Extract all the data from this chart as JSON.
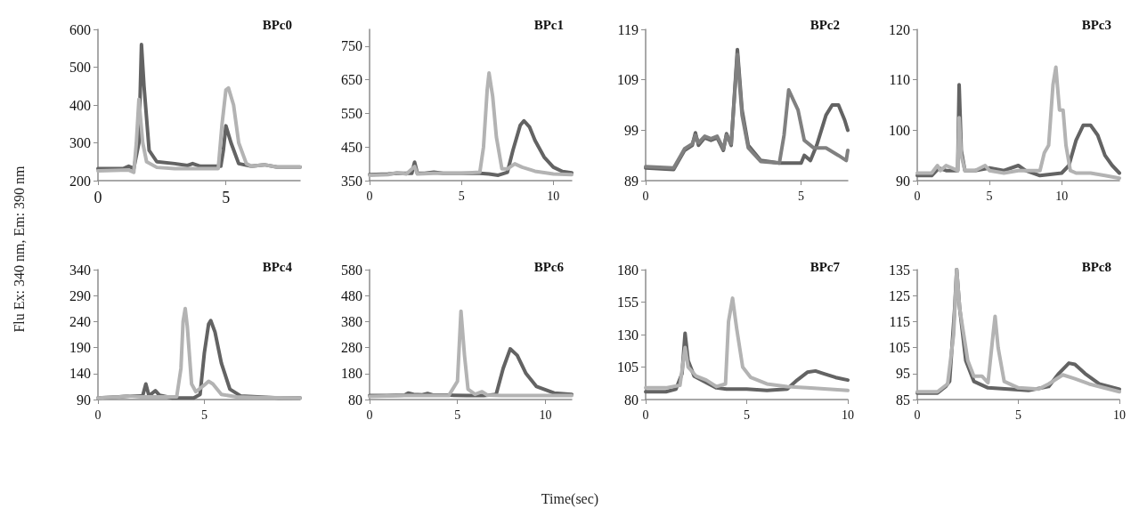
{
  "chart_data": [
    {
      "type": "line",
      "title": "BPc0",
      "ylabel": "Flu Ex: 340 nm, Em: 390 nm",
      "xlim": [
        0,
        7.9
      ],
      "xticks": [
        0,
        5
      ],
      "ylim": [
        200,
        600
      ],
      "yticks": [
        200,
        300,
        400,
        500,
        600
      ],
      "marker": "none",
      "line_style": "solid",
      "series": [
        {
          "color": "#636363",
          "x": [
            0,
            1,
            1.2,
            1.4,
            1.6,
            1.7,
            1.8,
            2.0,
            2.3,
            3,
            3.5,
            3.7,
            4,
            4.8,
            4.9,
            5.0,
            5.2,
            5.5,
            6,
            6.5,
            7,
            7.9
          ],
          "values": [
            232,
            232,
            238,
            232,
            300,
            560,
            450,
            280,
            250,
            245,
            240,
            245,
            238,
            238,
            280,
            345,
            300,
            245,
            238,
            242,
            236,
            236
          ]
        },
        {
          "color": "#b3b3b3",
          "x": [
            0,
            1.2,
            1.4,
            1.5,
            1.6,
            1.75,
            1.9,
            2.3,
            3,
            4,
            4.7,
            4.85,
            5.0,
            5.1,
            5.3,
            5.5,
            5.8,
            6,
            6.5,
            7,
            7.9
          ],
          "values": [
            226,
            228,
            222,
            300,
            415,
            300,
            250,
            235,
            232,
            232,
            232,
            350,
            440,
            445,
            400,
            300,
            245,
            238,
            242,
            236,
            236
          ]
        }
      ]
    },
    {
      "type": "line",
      "title": "BPc1",
      "xlim": [
        0,
        11
      ],
      "xticks": [
        0,
        5,
        10
      ],
      "ylim": [
        350,
        800
      ],
      "yticks": [
        350,
        450,
        550,
        650,
        750
      ],
      "marker": "none",
      "line_style": "solid",
      "series": [
        {
          "color": "#636363",
          "x": [
            0,
            1,
            1.5,
            2.0,
            2.3,
            2.45,
            2.6,
            3,
            3.5,
            4,
            5,
            6,
            6.5,
            7,
            7.5,
            7.8,
            8.2,
            8.4,
            8.7,
            9,
            9.5,
            10,
            10.5,
            11
          ],
          "values": [
            368,
            370,
            372,
            372,
            372,
            405,
            372,
            372,
            375,
            372,
            372,
            372,
            370,
            366,
            375,
            440,
            515,
            528,
            510,
            470,
            420,
            390,
            377,
            373
          ]
        },
        {
          "color": "#b3b3b3",
          "x": [
            0,
            1,
            1.5,
            2,
            2.45,
            2.6,
            3.5,
            5,
            6,
            6.2,
            6.4,
            6.5,
            6.7,
            6.9,
            7.2,
            7.5,
            7.9,
            8.3,
            9,
            10,
            11
          ],
          "values": [
            366,
            368,
            374,
            370,
            392,
            370,
            372,
            372,
            375,
            450,
            620,
            670,
            600,
            480,
            385,
            385,
            400,
            390,
            378,
            370,
            368
          ]
        }
      ]
    },
    {
      "type": "line",
      "title": "BPc2",
      "xlim": [
        0,
        6.5
      ],
      "xticks": [
        0,
        5
      ],
      "ylim": [
        89,
        119
      ],
      "yticks": [
        89,
        99,
        109,
        119
      ],
      "marker": "none",
      "line_style": "solid",
      "series": [
        {
          "color": "#636363",
          "x": [
            0,
            0.9,
            1.25,
            1.5,
            1.6,
            1.7,
            1.9,
            2.1,
            2.3,
            2.5,
            2.6,
            2.75,
            2.95,
            3.1,
            3.3,
            3.7,
            4.3,
            4.6,
            5.0,
            5.1,
            5.3,
            5.5,
            5.8,
            6.0,
            6.2,
            6.4,
            6.5
          ],
          "values": [
            91.5,
            91.2,
            95,
            96,
            98.5,
            96,
            97.5,
            97,
            97.5,
            95,
            98.3,
            96,
            115,
            103,
            96,
            93,
            92.5,
            92.5,
            92.5,
            94,
            93,
            96,
            102,
            104,
            104,
            101,
            99
          ]
        },
        {
          "color": "#808080",
          "x": [
            0,
            0.9,
            1.25,
            1.5,
            1.6,
            1.7,
            1.9,
            2.1,
            2.3,
            2.5,
            2.6,
            2.75,
            2.95,
            3.1,
            3.3,
            3.7,
            4.3,
            4.45,
            4.6,
            4.75,
            4.9,
            5.1,
            5.4,
            5.8,
            6.2,
            6.45,
            6.5
          ],
          "values": [
            91.8,
            91.5,
            95.3,
            96.3,
            98,
            96.5,
            97.8,
            97.3,
            97.8,
            95.3,
            98,
            96.3,
            114,
            102,
            95.5,
            92.8,
            92.5,
            98,
            107,
            105,
            103,
            97,
            95.5,
            95.5,
            94,
            93,
            95
          ]
        }
      ]
    },
    {
      "type": "line",
      "title": "BPc3",
      "xlim": [
        0,
        14
      ],
      "xticks": [
        0,
        5,
        10
      ],
      "ylim": [
        90,
        120
      ],
      "yticks": [
        90,
        100,
        110,
        120
      ],
      "marker": "none",
      "line_style": "solid",
      "series": [
        {
          "color": "#636363",
          "x": [
            0,
            1,
            1.5,
            2,
            2.8,
            2.9,
            3.05,
            3.3,
            4,
            5,
            6,
            7,
            7.5,
            8.5,
            10,
            10.5,
            11,
            11.5,
            12,
            12.5,
            13,
            13.5,
            14
          ],
          "values": [
            91,
            91,
            92.5,
            92,
            92,
            109,
            96,
            92,
            92,
            92.5,
            92,
            93,
            92,
            91,
            91.5,
            93,
            98,
            101,
            101,
            99,
            95,
            93,
            91.5
          ]
        },
        {
          "color": "#b3b3b3",
          "x": [
            0,
            1,
            1.4,
            1.6,
            2,
            2.8,
            2.9,
            3.05,
            3.3,
            4,
            4.7,
            5,
            6,
            7,
            8,
            8.5,
            8.8,
            9.1,
            9.4,
            9.6,
            9.85,
            10.1,
            10.3,
            10.6,
            11,
            12,
            13,
            14
          ],
          "values": [
            91.5,
            91.5,
            93,
            92,
            93,
            92,
            102.5,
            95,
            92,
            92,
            93,
            92,
            91.5,
            92,
            92,
            92,
            95.5,
            97,
            109,
            112.5,
            104,
            104,
            97,
            92,
            91.5,
            91.5,
            91,
            90.5
          ]
        }
      ]
    },
    {
      "type": "line",
      "title": "BPc4",
      "xlim": [
        0,
        9.5
      ],
      "xticks": [
        0,
        5
      ],
      "ylim": [
        90,
        340
      ],
      "yticks": [
        90,
        140,
        190,
        240,
        290,
        340
      ],
      "marker": "none",
      "line_style": "solid",
      "series": [
        {
          "color": "#636363",
          "x": [
            0,
            1,
            1.5,
            2.1,
            2.25,
            2.4,
            2.7,
            2.9,
            3.5,
            4.5,
            4.8,
            5.0,
            5.2,
            5.3,
            5.5,
            5.8,
            6.2,
            6.7,
            7.5,
            8.5,
            9.5
          ],
          "values": [
            93,
            95,
            97,
            97,
            120,
            97,
            107,
            98,
            93,
            93,
            100,
            180,
            235,
            242,
            220,
            160,
            110,
            97,
            95,
            93,
            93
          ]
        },
        {
          "color": "#b3b3b3",
          "x": [
            0,
            1,
            1.5,
            2,
            3,
            3.7,
            3.9,
            4.0,
            4.1,
            4.2,
            4.4,
            4.6,
            5.0,
            5.2,
            5.4,
            5.8,
            6.5,
            7.5,
            9.5
          ],
          "values": [
            93,
            95,
            97,
            95,
            95,
            95,
            150,
            240,
            265,
            230,
            120,
            105,
            118,
            125,
            120,
            100,
            95,
            94,
            93
          ]
        }
      ]
    },
    {
      "type": "line",
      "title": "BPc6",
      "xlabel": "Time(sec)",
      "xlim": [
        0,
        11.5
      ],
      "xticks": [
        0,
        5,
        10
      ],
      "ylim": [
        80,
        580
      ],
      "yticks": [
        80,
        180,
        280,
        380,
        480,
        580
      ],
      "marker": "none",
      "line_style": "solid",
      "series": [
        {
          "color": "#636363",
          "x": [
            0,
            1,
            2,
            2.2,
            2.5,
            3.0,
            3.3,
            3.6,
            4.5,
            5.5,
            6.5,
            7.2,
            7.6,
            8.0,
            8.4,
            8.9,
            9.5,
            10.5,
            11.5
          ],
          "values": [
            95,
            95,
            97,
            105,
            100,
            98,
            103,
            97,
            97,
            95,
            95,
            100,
            200,
            275,
            250,
            180,
            130,
            105,
            100
          ]
        },
        {
          "color": "#b3b3b3",
          "x": [
            0,
            2,
            3,
            4.5,
            5.0,
            5.2,
            5.4,
            5.6,
            6.0,
            6.4,
            6.7,
            7.5,
            9,
            11.5
          ],
          "values": [
            92,
            95,
            95,
            95,
            150,
            420,
            250,
            120,
            100,
            110,
            97,
            95,
            95,
            95
          ]
        }
      ]
    },
    {
      "type": "line",
      "title": "BPc7",
      "xlim": [
        0,
        10
      ],
      "xticks": [
        0,
        5,
        10
      ],
      "ylim": [
        80,
        180
      ],
      "yticks": [
        80,
        105,
        130,
        155,
        180
      ],
      "marker": "none",
      "line_style": "solid",
      "series": [
        {
          "color": "#636363",
          "x": [
            0,
            1,
            1.5,
            1.8,
            1.95,
            2.1,
            2.4,
            3,
            3.5,
            4.0,
            5,
            6,
            7,
            7.5,
            8.0,
            8.4,
            8.8,
            9.4,
            10
          ],
          "values": [
            86,
            86,
            88,
            100,
            131,
            110,
            98,
            93,
            89,
            88,
            88,
            87,
            88,
            95,
            101,
            102,
            100,
            97,
            95
          ]
        },
        {
          "color": "#b3b3b3",
          "x": [
            0,
            1,
            1.7,
            1.95,
            2.1,
            2.5,
            3,
            3.5,
            3.95,
            4.1,
            4.3,
            4.5,
            4.8,
            5.2,
            6,
            7,
            8,
            9,
            10
          ],
          "values": [
            89,
            89,
            91,
            120,
            105,
            98,
            95,
            90,
            92,
            140,
            158,
            135,
            105,
            97,
            92,
            90,
            89,
            88,
            87
          ]
        }
      ]
    },
    {
      "type": "line",
      "title": "BPc8",
      "xlim": [
        0,
        10
      ],
      "xticks": [
        0,
        5,
        10
      ],
      "ylim": [
        85,
        135
      ],
      "yticks": [
        85,
        95,
        105,
        115,
        125,
        135
      ],
      "marker": "none",
      "line_style": "solid",
      "series": [
        {
          "color": "#636363",
          "x": [
            0,
            1,
            1.4,
            1.6,
            1.85,
            1.95,
            2.1,
            2.4,
            2.8,
            3.5,
            4.5,
            5.5,
            6.5,
            7,
            7.5,
            7.8,
            8.3,
            9,
            10
          ],
          "values": [
            87.5,
            87.5,
            90,
            92,
            120,
            135,
            120,
            100,
            92,
            89.5,
            89,
            88.5,
            90,
            95,
            99,
            98.5,
            95,
            91,
            89
          ]
        },
        {
          "color": "#b3b3b3",
          "x": [
            0,
            1,
            1.5,
            1.8,
            1.95,
            2.1,
            2.5,
            2.8,
            3.2,
            3.5,
            3.75,
            3.85,
            4.0,
            4.3,
            5,
            6,
            6.5,
            7.2,
            7.8,
            8.5,
            10
          ],
          "values": [
            88,
            88,
            91,
            110,
            135,
            120,
            100,
            94,
            94,
            91.5,
            110,
            117,
            105,
            92,
            89.5,
            89,
            91,
            94.5,
            93,
            91,
            88
          ]
        }
      ]
    }
  ]
}
